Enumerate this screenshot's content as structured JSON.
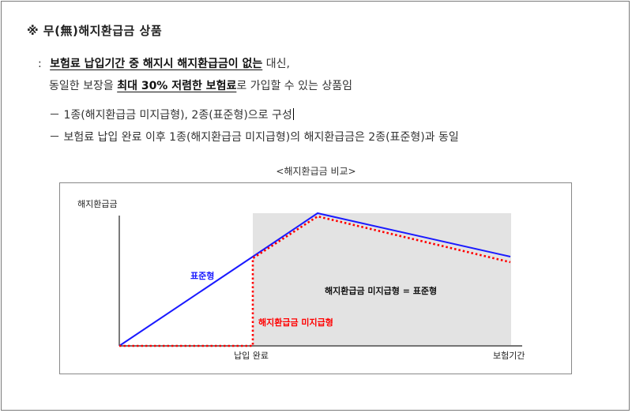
{
  "title": "※ 무(無)해지환급금 상품",
  "description": {
    "prefix": ":",
    "line1_bold_underlined": "보험료 납입기간 중 해지시 해지환급금이 없는",
    "line1_rest": " 대신,",
    "line2_start": "동일한 보장을 ",
    "line2_bold_underlined": "최대 30% 저렴한 보험료",
    "line2_rest": "로 가입할 수 있는 상품임"
  },
  "bullets": [
    "－ 1종(해지환급금 미지급형), 2종(표준형)으로 구성",
    "－ 보험료 납입 완료 이후 1종(해지환급금 미지급형)의 해지환급금은 2종(표준형)과 동일"
  ],
  "chart_caption": "<해지환급금 비교>",
  "chart_data": {
    "type": "line",
    "ylabel": "해지환급금",
    "xlabel": "보험기간",
    "x_tick_labels": [
      "납입 완료"
    ],
    "series": [
      {
        "name": "표준형",
        "color": "#1a1aff",
        "style": "solid"
      },
      {
        "name": "해지환급금 미지급형",
        "color": "#ff0000",
        "style": "dotted"
      }
    ],
    "shaded_region_label": "해지환급금 미지급형 = 표준형",
    "shaded_region_color": "#e3e3e3",
    "grid": false
  }
}
